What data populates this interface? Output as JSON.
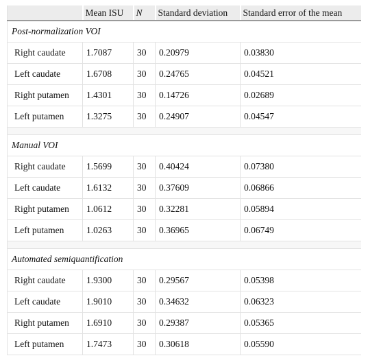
{
  "table": {
    "header": [
      "Mean ISU",
      "N",
      "Standard deviation",
      "Standard error of the mean"
    ],
    "sections": [
      {
        "title": "Post-normalization VOI",
        "rows": [
          [
            "Right caudate",
            "1.7087",
            "30",
            "0.20979",
            "0.03830"
          ],
          [
            "Left caudate",
            "1.6708",
            "30",
            "0.24765",
            "0.04521"
          ],
          [
            "Right putamen",
            "1.4301",
            "30",
            "0.14726",
            "0.02689"
          ],
          [
            "Left putamen",
            "1.3275",
            "30",
            "0.24907",
            "0.04547"
          ]
        ]
      },
      {
        "title": "Manual VOI",
        "rows": [
          [
            "Right caudate",
            "1.5699",
            "30",
            "0.40424",
            "0.07380"
          ],
          [
            "Left caudate",
            "1.6132",
            "30",
            "0.37609",
            "0.06866"
          ],
          [
            "Right putamen",
            "1.0612",
            "30",
            "0.32281",
            "0.05894"
          ],
          [
            "Left putamen",
            "1.0263",
            "30",
            "0.36965",
            "0.06749"
          ]
        ]
      },
      {
        "title": "Automated semiquantification",
        "rows": [
          [
            "Right caudate",
            "1.9300",
            "30",
            "0.29567",
            "0.05398"
          ],
          [
            "Left caudate",
            "1.9010",
            "30",
            "0.34632",
            "0.06323"
          ],
          [
            "Right putamen",
            "1.6910",
            "30",
            "0.29387",
            "0.05365"
          ],
          [
            "Left putamen",
            "1.7473",
            "30",
            "0.30618",
            "0.05590"
          ]
        ]
      }
    ]
  }
}
